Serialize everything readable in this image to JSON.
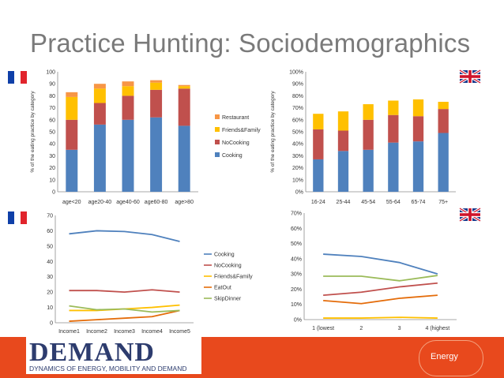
{
  "title": "Practice Hunting: Sociodemographics",
  "flags": {
    "top_left": "france-flag-icon",
    "top_right": "uk-flag-icon",
    "bottom_left": "france-flag-icon",
    "bottom_right": "uk-flag-icon"
  },
  "colors": {
    "cooking": "#4f81bd",
    "nocooking": "#c0504d",
    "friends": "#ffc000",
    "restaurant": "#f79646",
    "eatout": "#e46c0a",
    "skipdinner": "#9bbb59",
    "footer": "#e8491d"
  },
  "footer": {
    "logo_text": "DEMAND",
    "logo_sub": "DYNAMICS OF ENERGY, MOBILITY AND DEMAND",
    "badge_text": "Energy"
  },
  "chart_data": [
    {
      "type": "bar",
      "stacked": true,
      "panel": "top-left",
      "ylabel": "% of the eating practice by category",
      "categories": [
        "age<20",
        "age20-40",
        "age40-60",
        "age60-80",
        "age>80"
      ],
      "ylim": [
        0,
        100
      ],
      "yticks": [
        "0",
        "10",
        "20",
        "30",
        "40",
        "50",
        "60",
        "70",
        "80",
        "90",
        "100"
      ],
      "legend_position": "right",
      "series": [
        {
          "name": "Cooking",
          "color": "#4f81bd",
          "values": [
            35,
            56,
            60,
            62,
            55
          ]
        },
        {
          "name": "NoCooking",
          "color": "#c0504d",
          "values": [
            25,
            18,
            20,
            23,
            31
          ]
        },
        {
          "name": "Friends&Family",
          "color": "#ffc000",
          "values": [
            19,
            12,
            8,
            6,
            2
          ]
        },
        {
          "name": "Restaurant",
          "color": "#f79646",
          "values": [
            4,
            4,
            4,
            2,
            1
          ]
        }
      ],
      "legend_order": [
        "Restaurant",
        "Friends&Family",
        "NoCooking",
        "Cooking"
      ]
    },
    {
      "type": "bar",
      "stacked": true,
      "panel": "top-right",
      "ylabel": "% of the eating practice by category",
      "categories": [
        "16-24",
        "25-44",
        "45-54",
        "55-64",
        "65-74",
        "75+"
      ],
      "ylim": [
        0,
        100
      ],
      "yticks": [
        "0%",
        "10%",
        "20%",
        "30%",
        "40%",
        "50%",
        "60%",
        "70%",
        "80%",
        "90%",
        "100%"
      ],
      "series": [
        {
          "name": "",
          "color": "#4f81bd",
          "values": [
            27,
            34,
            35,
            41,
            42,
            49
          ]
        },
        {
          "name": "",
          "color": "#c0504d",
          "values": [
            25,
            17,
            25,
            23,
            21,
            20
          ]
        },
        {
          "name": "",
          "color": "#ffc000",
          "values": [
            13,
            16,
            13,
            12,
            14,
            6
          ]
        }
      ]
    },
    {
      "type": "line",
      "panel": "bottom-left",
      "categories": [
        "Income1",
        "Income2",
        "Income3",
        "Income4",
        "Income5"
      ],
      "ylim": [
        0,
        70
      ],
      "yticks": [
        "0",
        "10",
        "20",
        "30",
        "40",
        "50",
        "60",
        "70"
      ],
      "legend_position": "right",
      "series": [
        {
          "name": "Cooking",
          "color": "#4f81bd",
          "values": [
            58,
            60,
            59.5,
            57.5,
            53
          ]
        },
        {
          "name": "NoCooking",
          "color": "#c0504d",
          "values": [
            21,
            21,
            20,
            21.5,
            20
          ]
        },
        {
          "name": "Friends&Family",
          "color": "#ffc000",
          "values": [
            8,
            8,
            9,
            10,
            11.5
          ]
        },
        {
          "name": "EatOut",
          "color": "#e46c0a",
          "values": [
            1,
            2,
            3,
            4,
            8
          ]
        },
        {
          "name": "SkipDinner",
          "color": "#9bbb59",
          "values": [
            11,
            8.5,
            9,
            7,
            8
          ]
        }
      ]
    },
    {
      "type": "line",
      "panel": "bottom-right",
      "categories": [
        "1 (lowest",
        "2",
        "3",
        "4 (highest"
      ],
      "ylim": [
        0,
        70
      ],
      "yticks": [
        "0%",
        "10%",
        "20%",
        "30%",
        "40%",
        "50%",
        "60%",
        "70%"
      ],
      "series": [
        {
          "name": "",
          "color": "#4f81bd",
          "values": [
            43,
            41.5,
            37.5,
            30
          ]
        },
        {
          "name": "",
          "color": "#c0504d",
          "values": [
            16,
            18,
            21.5,
            24
          ]
        },
        {
          "name": "",
          "color": "#9bbb59",
          "values": [
            28.5,
            28.5,
            25.5,
            29
          ]
        },
        {
          "name": "",
          "color": "#e46c0a",
          "values": [
            12.5,
            10.5,
            14,
            16
          ]
        },
        {
          "name": "",
          "color": "#ffc000",
          "values": [
            1,
            1,
            1.5,
            1
          ]
        }
      ]
    }
  ]
}
